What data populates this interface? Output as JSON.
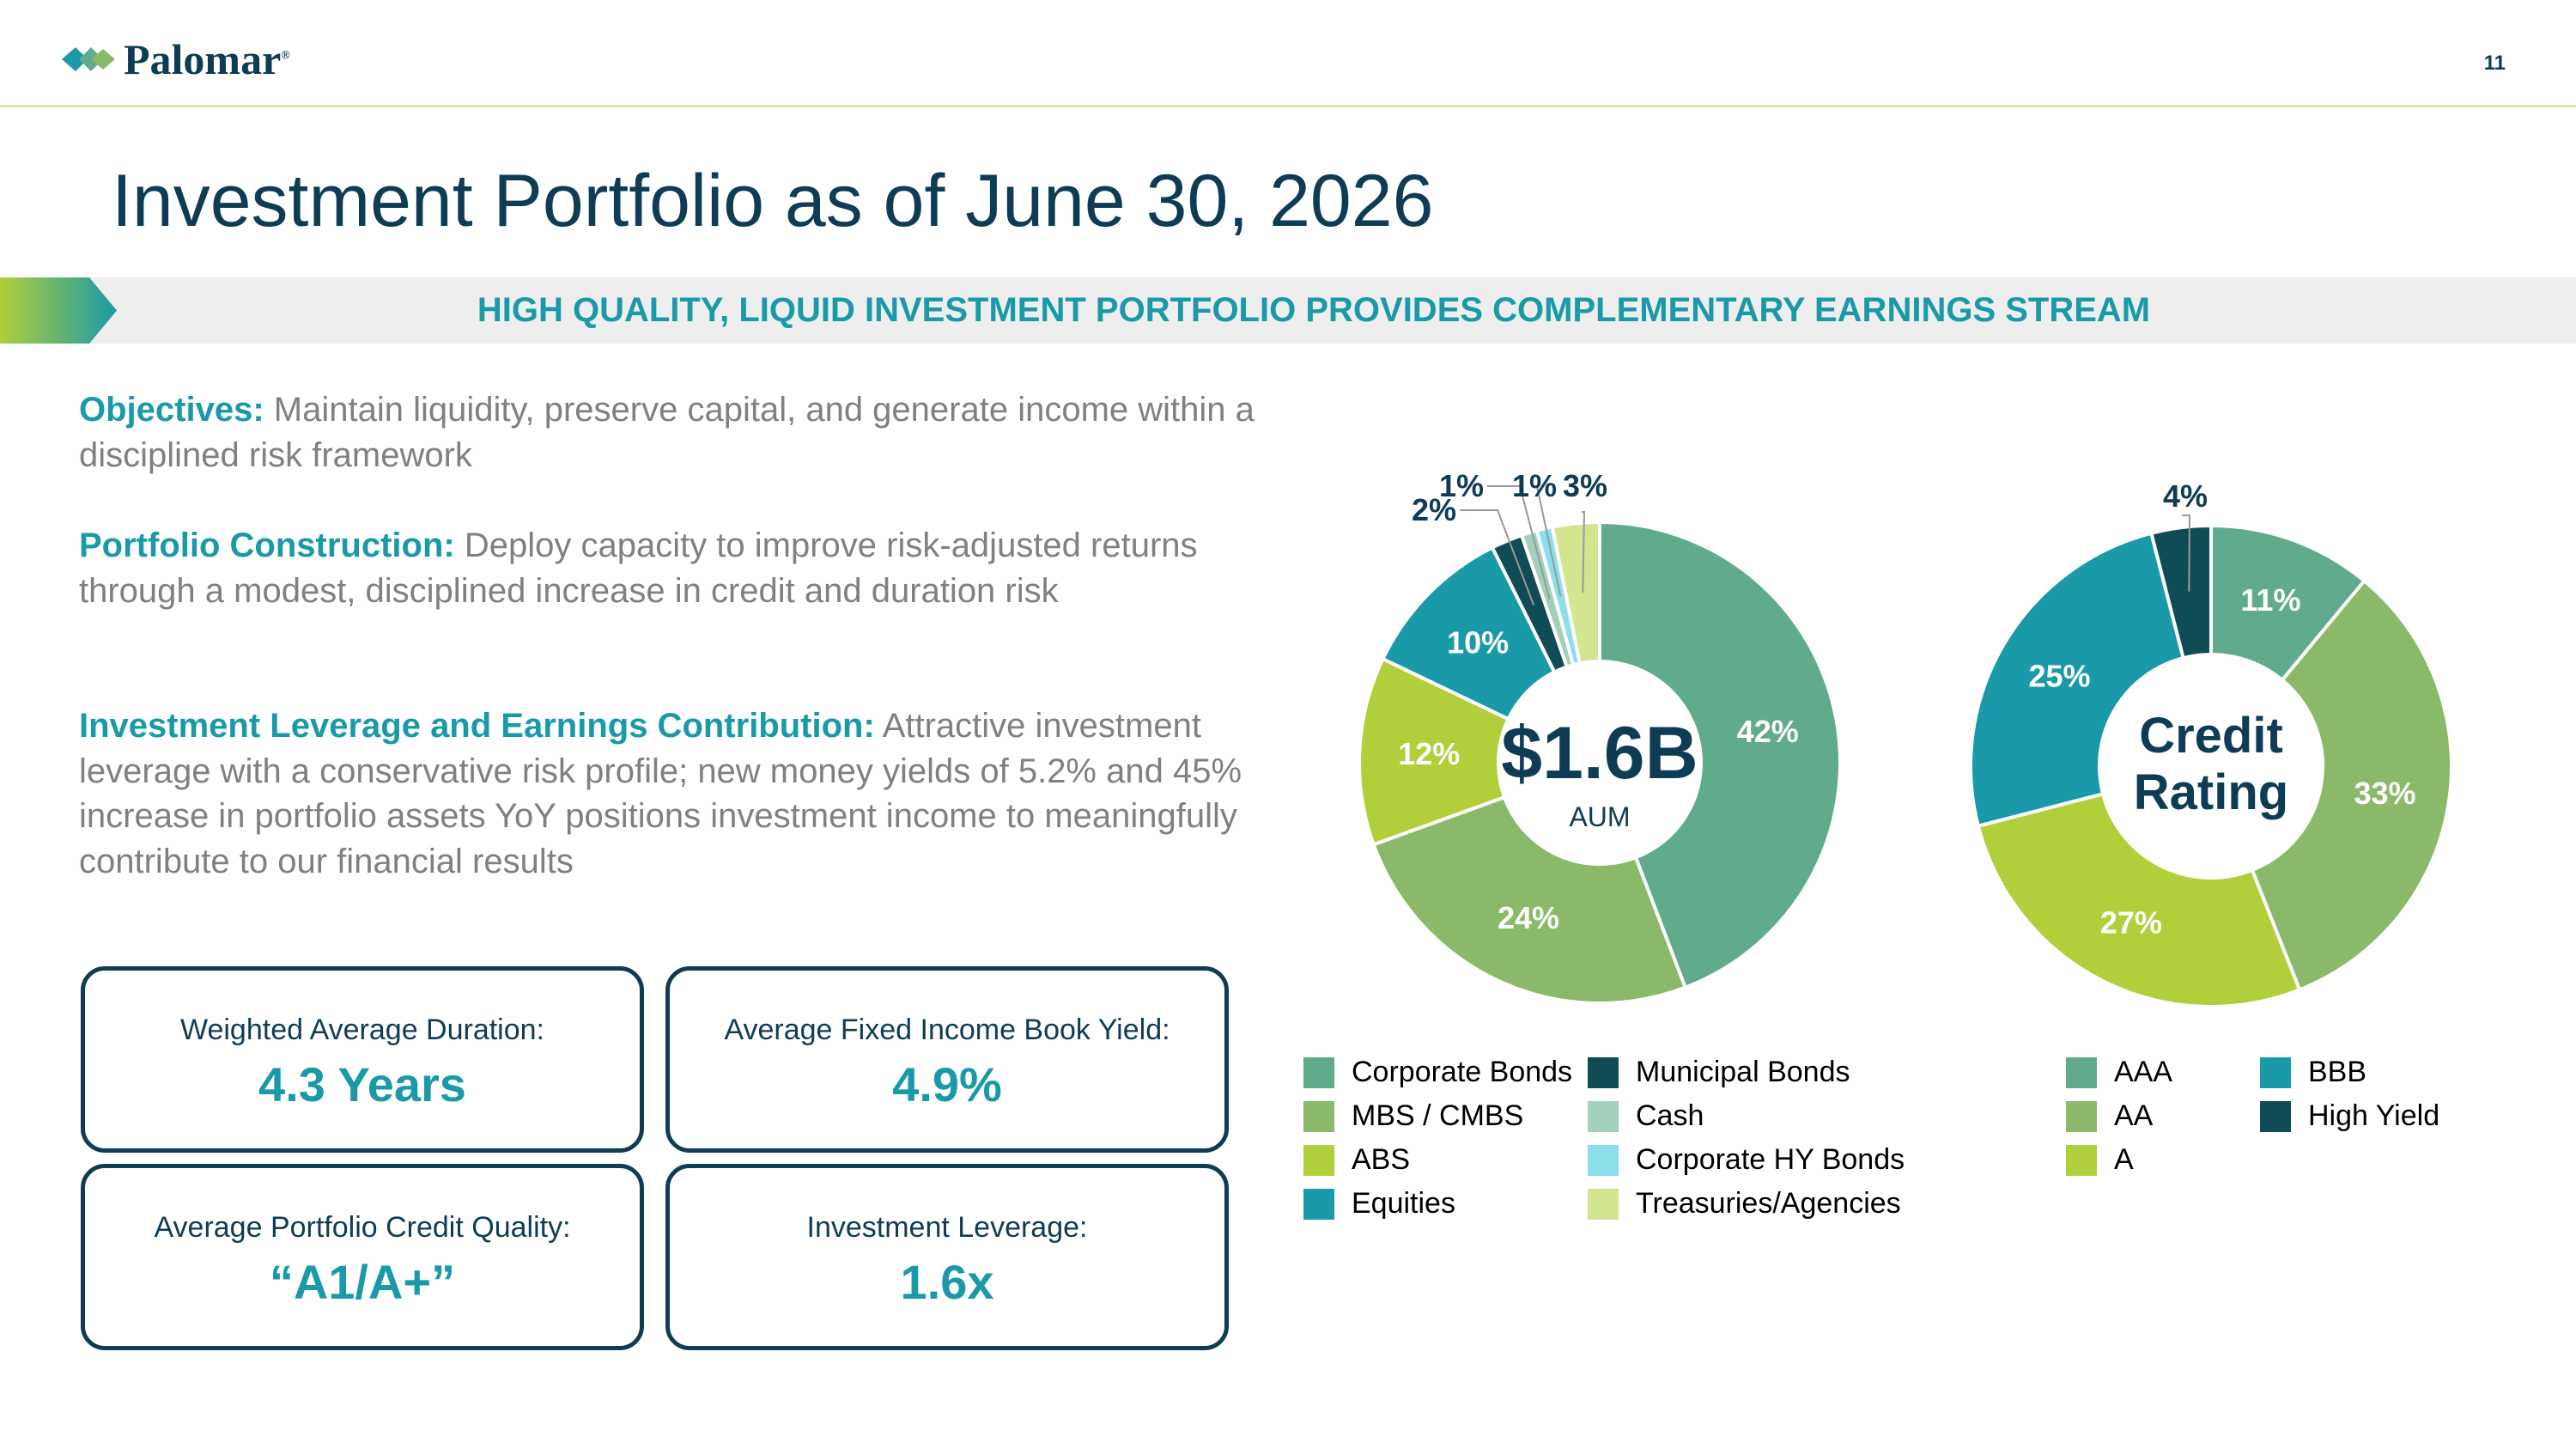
{
  "header": {
    "brand": "Palomar",
    "brand_mark": "®",
    "page_number": "11"
  },
  "title": "Investment Portfolio as of June 30, 2026",
  "banner": "HIGH QUALITY, LIQUID INVESTMENT PORTFOLIO PROVIDES COMPLEMENTARY EARNINGS STREAM",
  "paragraphs": [
    {
      "heading": "Objectives:",
      "text": " Maintain liquidity, preserve capital, and generate income within a disciplined risk framework"
    },
    {
      "heading": "Portfolio Construction:",
      "text": " Deploy capacity to improve risk-adjusted returns through a modest, disciplined increase in credit and duration risk"
    },
    {
      "heading": "Investment Leverage and Earnings Contribution:",
      "text": " Attractive investment leverage with a conservative risk profile; new money yields of 5.2% and 45% increase in portfolio assets YoY positions investment income to meaningfully contribute to our financial results"
    }
  ],
  "kpis": [
    {
      "label": "Weighted Average Duration:",
      "value": "4.3 Years"
    },
    {
      "label": "Average Fixed Income Book Yield:",
      "value": "4.9%"
    },
    {
      "label": "Average Portfolio Credit Quality:",
      "value": "“A1/A+”"
    },
    {
      "label": "Investment Leverage:",
      "value": "1.6x"
    }
  ],
  "colors": {
    "navy": "#0f3c55",
    "teal": "#1a9aa8",
    "body_text": "#808080",
    "banner_bg": "#eeeeee",
    "rule": "#d7e9a4"
  },
  "chart_data": [
    {
      "type": "pie",
      "center_value": "$1.6B",
      "center_label": "AUM",
      "categories": [
        "Corporate Bonds",
        "MBS / CMBS",
        "ABS",
        "Equities",
        "Municipal Bonds",
        "Cash",
        "Corporate HY Bonds",
        "Treasuries/Agencies"
      ],
      "values": [
        42,
        24,
        12,
        10,
        2,
        1,
        1,
        3
      ],
      "labels": [
        "42%",
        "24%",
        "12%",
        "10%",
        "2%",
        "1%",
        "1%",
        "3%"
      ],
      "colors": [
        "#61ab8d",
        "#8aba69",
        "#b1cf3a",
        "#1a9aa8",
        "#0f4c55",
        "#a3cfbd",
        "#8adfea",
        "#d3e58e"
      ],
      "legend": "bottom"
    },
    {
      "type": "pie",
      "center_value": "Credit Rating",
      "categories": [
        "AAA",
        "AA",
        "A",
        "BBB",
        "High Yield"
      ],
      "values": [
        11,
        33,
        27,
        25,
        4
      ],
      "labels": [
        "11%",
        "33%",
        "27%",
        "25%",
        "4%"
      ],
      "colors": [
        "#61ab8d",
        "#8aba69",
        "#b1cf3a",
        "#1a9aa8",
        "#0f4c55"
      ],
      "legend": "bottom"
    }
  ]
}
